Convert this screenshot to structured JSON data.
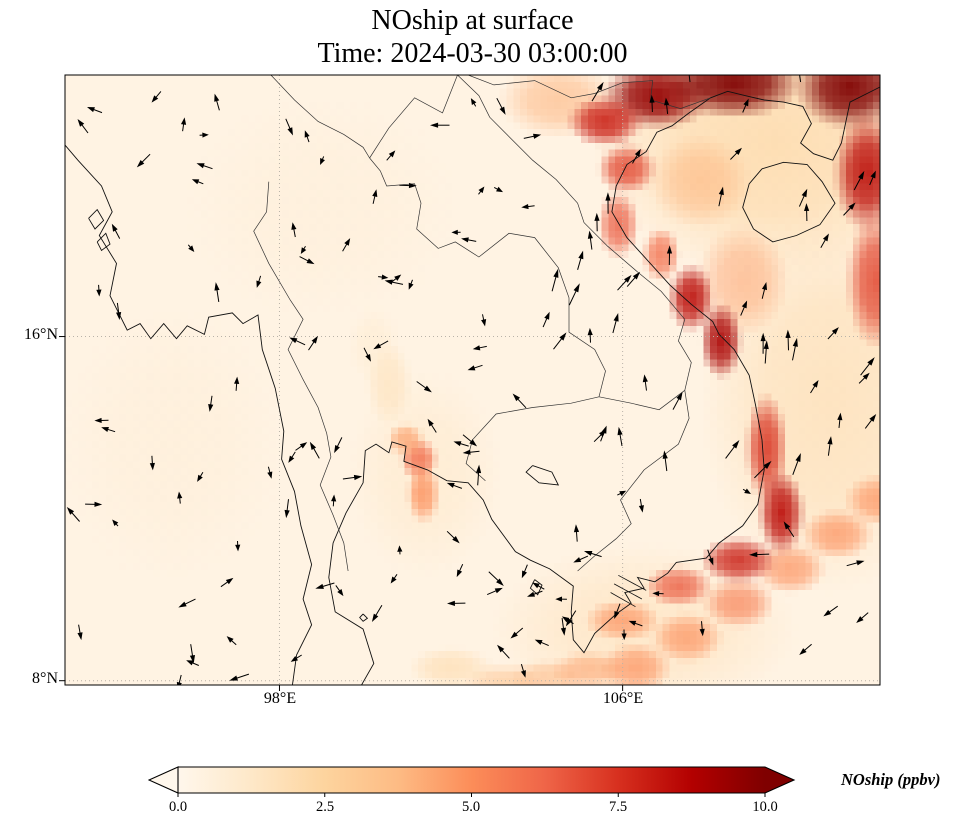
{
  "title": {
    "line1": "NOship at surface",
    "line2": "Time: 2024-03-30 03:00:00"
  },
  "axes": {
    "extent": {
      "lon_min": 93.0,
      "lon_max": 112.0,
      "lat_min": 7.9,
      "lat_max": 22.08
    },
    "x_ticks": [
      {
        "label": "98°E",
        "lon": 98
      },
      {
        "label": "106°E",
        "lon": 106
      }
    ],
    "y_ticks": [
      {
        "label": "16°N",
        "lat": 16
      },
      {
        "label": "8°N",
        "lat": 8
      }
    ],
    "grid": {
      "x_lons": [
        98,
        106
      ],
      "y_lats": [
        16,
        8
      ],
      "style": "dotted"
    }
  },
  "colorbar": {
    "label": "NOship (ppbv)",
    "ticks": [
      "0.0",
      "2.5",
      "5.0",
      "7.5",
      "10.0"
    ],
    "tick_values": [
      0,
      2.5,
      5.0,
      7.5,
      10.0
    ],
    "min": 0,
    "max": 10,
    "extend": "both",
    "stops": [
      {
        "v": 0.0,
        "c": "#fff7ec"
      },
      {
        "v": 1.25,
        "c": "#fee8c8"
      },
      {
        "v": 2.5,
        "c": "#fdd49e"
      },
      {
        "v": 3.75,
        "c": "#fdbb84"
      },
      {
        "v": 5.0,
        "c": "#fc8d59"
      },
      {
        "v": 6.25,
        "c": "#ef6548"
      },
      {
        "v": 7.5,
        "c": "#d7301f"
      },
      {
        "v": 8.75,
        "c": "#b30000"
      },
      {
        "v": 10.0,
        "c": "#7f0000"
      }
    ]
  },
  "chart_data": {
    "type": "heatmap",
    "variable": "NOship",
    "units": "ppbv",
    "level": "surface",
    "time": "2024-03-30 03:00:00",
    "value_range_ppbv": [
      0,
      10
    ],
    "extent": {
      "lon_min": 93.0,
      "lon_max": 112.0,
      "lat_min": 7.9,
      "lat_max": 22.08
    },
    "overlays": [
      "wind_quiver",
      "coastlines",
      "country_borders",
      "dotted_graticule"
    ],
    "background_value_ppbv": 0.3,
    "heat_blobs": [
      [
        109.5,
        20.5,
        4.2,
        3.2,
        2.2,
        0.8
      ],
      [
        110.8,
        14.5,
        3.0,
        4.5,
        2.0,
        0.65
      ],
      [
        106.5,
        9.2,
        3.6,
        2.0,
        1.8,
        0.55
      ],
      [
        101.4,
        12.8,
        1.8,
        2.4,
        1.3,
        0.5
      ],
      [
        95.5,
        13.5,
        2.6,
        3.2,
        0.8,
        0.45
      ],
      [
        99.0,
        19.0,
        3.2,
        2.6,
        0.8,
        0.4
      ],
      [
        104.5,
        21.5,
        1.4,
        0.9,
        4,
        0.6
      ],
      [
        107.8,
        19.6,
        1.2,
        1.1,
        4,
        0.55
      ],
      [
        108.8,
        17.3,
        1.1,
        1.3,
        4.5,
        0.55
      ],
      [
        106.3,
        8.3,
        0.85,
        0.6,
        5,
        0.7
      ],
      [
        107.5,
        9.0,
        0.85,
        0.6,
        5,
        0.7
      ],
      [
        108.7,
        9.8,
        0.85,
        0.6,
        5.5,
        0.7
      ],
      [
        109.9,
        10.6,
        0.85,
        0.6,
        5,
        0.7
      ],
      [
        111.0,
        11.4,
        0.85,
        0.6,
        5,
        0.7
      ],
      [
        112.0,
        12.2,
        0.85,
        0.6,
        5,
        0.7
      ],
      [
        103.2,
        7.95,
        0.9,
        0.45,
        3.5,
        0.55
      ],
      [
        104.2,
        8.05,
        0.9,
        0.45,
        4,
        0.55
      ],
      [
        105.2,
        8.25,
        0.9,
        0.45,
        4.5,
        0.6
      ],
      [
        102.0,
        8.3,
        1.0,
        0.5,
        2.5,
        0.5
      ],
      [
        106.8,
        21.6,
        1.3,
        0.8,
        9.5,
        0.95
      ],
      [
        108.6,
        21.9,
        1.6,
        0.85,
        10,
        0.95
      ],
      [
        111.3,
        21.8,
        1.3,
        1.0,
        10,
        0.95
      ],
      [
        105.6,
        21.0,
        0.9,
        0.6,
        8,
        0.9
      ],
      [
        106.1,
        19.9,
        0.7,
        0.6,
        7,
        0.85
      ],
      [
        111.7,
        19.8,
        0.8,
        1.4,
        8.5,
        0.9
      ],
      [
        111.9,
        17.3,
        0.7,
        1.6,
        7,
        0.85
      ],
      [
        105.9,
        18.6,
        0.5,
        0.8,
        6.5,
        0.8
      ],
      [
        106.9,
        17.9,
        0.45,
        0.65,
        6,
        0.8
      ],
      [
        107.6,
        16.9,
        0.55,
        0.8,
        8.5,
        0.9
      ],
      [
        108.3,
        15.9,
        0.5,
        0.9,
        9,
        0.9
      ],
      [
        109.35,
        13.4,
        0.5,
        1.3,
        7.5,
        0.85
      ],
      [
        109.7,
        11.9,
        0.55,
        1.0,
        8.5,
        0.9
      ],
      [
        108.7,
        10.8,
        0.9,
        0.55,
        8,
        0.85
      ],
      [
        107.3,
        10.2,
        0.8,
        0.5,
        6.5,
        0.8
      ],
      [
        106.0,
        9.4,
        0.9,
        0.5,
        5,
        0.7
      ],
      [
        101.25,
        13.15,
        0.45,
        0.5,
        6,
        0.85
      ],
      [
        101.35,
        12.35,
        0.4,
        0.7,
        5,
        0.8
      ],
      [
        100.95,
        13.6,
        0.45,
        0.4,
        4.5,
        0.75
      ],
      [
        100.55,
        14.9,
        0.55,
        1.0,
        2,
        0.5
      ],
      [
        100.2,
        15.8,
        0.6,
        0.9,
        1.2,
        0.4
      ]
    ],
    "wind": {
      "seed": 42,
      "count": 170,
      "color": "#000000",
      "note": "black quiver arrows; flow northward over NE quadrant (Vietnam coast / Gulf of Tonkin), mixed weak directions elsewhere"
    }
  },
  "map": {
    "coastlines": [
      [
        [
          93.0,
          20.45
        ],
        [
          93.3,
          20.1
        ],
        [
          93.85,
          19.5
        ],
        [
          94.1,
          18.9
        ],
        [
          93.8,
          18.35
        ],
        [
          94.2,
          17.7
        ],
        [
          94.05,
          16.95
        ],
        [
          94.45,
          16.15
        ],
        [
          94.75,
          16.3
        ],
        [
          95.0,
          15.95
        ],
        [
          95.3,
          16.3
        ],
        [
          95.6,
          15.95
        ],
        [
          95.85,
          16.25
        ],
        [
          96.25,
          16.05
        ],
        [
          96.35,
          16.45
        ],
        [
          96.9,
          16.55
        ],
        [
          97.15,
          16.3
        ],
        [
          97.5,
          16.5
        ],
        [
          97.6,
          15.7
        ],
        [
          97.9,
          14.8
        ],
        [
          98.1,
          13.8
        ],
        [
          98.05,
          13.15
        ],
        [
          98.35,
          12.4
        ],
        [
          98.5,
          11.6
        ],
        [
          98.75,
          10.7
        ],
        [
          98.55,
          9.9
        ],
        [
          98.75,
          9.3
        ],
        [
          98.4,
          8.6
        ],
        [
          98.3,
          7.88
        ]
      ],
      [
        [
          99.9,
          7.88
        ],
        [
          100.2,
          8.4
        ],
        [
          99.95,
          9.2
        ],
        [
          99.3,
          9.6
        ],
        [
          99.15,
          10.4
        ],
        [
          99.25,
          11.2
        ],
        [
          99.55,
          11.9
        ],
        [
          99.95,
          12.6
        ],
        [
          100.0,
          13.35
        ],
        [
          100.25,
          13.5
        ],
        [
          100.55,
          13.3
        ],
        [
          100.62,
          13.55
        ],
        [
          100.95,
          13.45
        ],
        [
          100.9,
          13.1
        ],
        [
          101.45,
          12.9
        ],
        [
          101.9,
          12.65
        ],
        [
          102.4,
          12.6
        ],
        [
          102.75,
          12.2
        ],
        [
          102.95,
          11.75
        ],
        [
          103.5,
          11.0
        ],
        [
          103.85,
          10.8
        ],
        [
          104.3,
          10.6
        ],
        [
          104.85,
          10.2
        ],
        [
          104.8,
          9.6
        ],
        [
          104.85,
          8.95
        ],
        [
          105.1,
          8.65
        ],
        [
          105.35,
          9.1
        ],
        [
          105.85,
          9.55
        ],
        [
          106.2,
          9.8
        ],
        [
          106.05,
          10.05
        ],
        [
          106.5,
          10.15
        ],
        [
          106.35,
          10.4
        ],
        [
          106.75,
          10.3
        ],
        [
          107.05,
          10.5
        ],
        [
          107.25,
          10.75
        ],
        [
          107.95,
          10.85
        ],
        [
          108.25,
          11.2
        ],
        [
          108.8,
          11.6
        ],
        [
          109.15,
          12.1
        ],
        [
          109.3,
          12.9
        ],
        [
          109.25,
          13.6
        ],
        [
          109.1,
          14.4
        ],
        [
          108.95,
          15.1
        ],
        [
          108.6,
          15.7
        ],
        [
          108.25,
          16.05
        ],
        [
          108.1,
          16.35
        ],
        [
          107.6,
          16.75
        ],
        [
          107.1,
          17.2
        ],
        [
          106.6,
          17.75
        ],
        [
          106.1,
          18.3
        ],
        [
          105.75,
          18.9
        ],
        [
          105.85,
          19.5
        ],
        [
          106.1,
          20.0
        ],
        [
          106.55,
          20.3
        ],
        [
          106.8,
          20.75
        ],
        [
          107.15,
          20.9
        ],
        [
          107.55,
          21.2
        ],
        [
          108.05,
          21.55
        ],
        [
          108.45,
          21.7
        ],
        [
          108.85,
          21.6
        ],
        [
          109.3,
          21.5
        ],
        [
          109.75,
          21.45
        ],
        [
          110.2,
          21.35
        ],
        [
          110.4,
          20.95
        ],
        [
          110.15,
          20.5
        ],
        [
          110.45,
          20.25
        ],
        [
          110.9,
          20.1
        ],
        [
          111.1,
          20.5
        ],
        [
          111.3,
          21.45
        ],
        [
          111.7,
          21.65
        ],
        [
          112.0,
          21.8
        ]
      ],
      [
        [
          109.25,
          19.9
        ],
        [
          109.75,
          20.05
        ],
        [
          110.3,
          20.0
        ],
        [
          110.65,
          19.6
        ],
        [
          110.95,
          19.1
        ],
        [
          110.6,
          18.6
        ],
        [
          110.05,
          18.35
        ],
        [
          109.5,
          18.2
        ],
        [
          109.05,
          18.5
        ],
        [
          108.8,
          19.0
        ],
        [
          108.95,
          19.55
        ],
        [
          109.25,
          19.9
        ]
      ],
      [
        [
          93.55,
          18.75
        ],
        [
          93.75,
          18.95
        ],
        [
          93.9,
          18.7
        ],
        [
          93.7,
          18.5
        ],
        [
          93.55,
          18.75
        ]
      ],
      [
        [
          93.75,
          18.2
        ],
        [
          93.95,
          18.4
        ],
        [
          94.05,
          18.15
        ],
        [
          93.85,
          18.0
        ],
        [
          93.75,
          18.2
        ]
      ],
      [
        [
          103.95,
          10.35
        ],
        [
          104.12,
          10.22
        ],
        [
          104.02,
          10.0
        ],
        [
          103.85,
          10.15
        ],
        [
          103.95,
          10.35
        ]
      ],
      [
        [
          99.95,
          9.55
        ],
        [
          100.05,
          9.45
        ],
        [
          99.95,
          9.38
        ],
        [
          99.87,
          9.47
        ],
        [
          99.95,
          9.55
        ]
      ],
      [
        [
          103.9,
          13.0
        ],
        [
          104.35,
          12.85
        ],
        [
          104.5,
          12.55
        ],
        [
          104.05,
          12.6
        ],
        [
          103.75,
          12.85
        ],
        [
          103.9,
          13.0
        ]
      ]
    ],
    "delta_channels": [
      [
        [
          105.9,
          10.45
        ],
        [
          106.55,
          10.1
        ]
      ],
      [
        [
          105.8,
          10.25
        ],
        [
          106.45,
          9.9
        ]
      ],
      [
        [
          105.72,
          10.05
        ],
        [
          106.3,
          9.72
        ]
      ]
    ],
    "borders": [
      [
        [
          97.75,
          19.6
        ],
        [
          97.7,
          18.9
        ],
        [
          97.4,
          18.45
        ],
        [
          97.75,
          17.7
        ],
        [
          98.25,
          16.85
        ],
        [
          98.55,
          16.4
        ],
        [
          98.2,
          15.7
        ],
        [
          98.55,
          15.0
        ],
        [
          98.9,
          14.35
        ],
        [
          99.1,
          13.75
        ],
        [
          99.2,
          13.2
        ],
        [
          98.95,
          12.55
        ],
        [
          99.25,
          11.85
        ],
        [
          99.5,
          11.2
        ],
        [
          99.6,
          10.55
        ]
      ],
      [
        [
          100.1,
          20.15
        ],
        [
          100.35,
          19.85
        ],
        [
          100.5,
          19.5
        ],
        [
          101.15,
          19.55
        ],
        [
          101.3,
          19.1
        ],
        [
          101.2,
          18.5
        ],
        [
          101.7,
          18.05
        ],
        [
          102.1,
          18.2
        ],
        [
          102.65,
          17.85
        ],
        [
          103.35,
          18.4
        ],
        [
          103.95,
          18.3
        ],
        [
          104.5,
          17.6
        ],
        [
          104.75,
          16.9
        ],
        [
          104.75,
          16.1
        ],
        [
          105.35,
          15.7
        ],
        [
          105.6,
          15.2
        ],
        [
          105.45,
          14.6
        ]
      ],
      [
        [
          105.45,
          14.6
        ],
        [
          104.8,
          14.45
        ],
        [
          103.9,
          14.35
        ],
        [
          103.05,
          14.2
        ],
        [
          102.5,
          13.6
        ],
        [
          102.35,
          13.05
        ],
        [
          102.8,
          12.65
        ]
      ],
      [
        [
          102.15,
          22.08
        ],
        [
          102.65,
          21.6
        ],
        [
          102.9,
          21.1
        ],
        [
          103.3,
          20.7
        ],
        [
          103.9,
          20.1
        ],
        [
          104.45,
          19.65
        ],
        [
          104.95,
          19.1
        ],
        [
          105.1,
          18.65
        ],
        [
          105.65,
          18.1
        ],
        [
          106.35,
          17.5
        ],
        [
          106.9,
          17.05
        ],
        [
          107.45,
          16.4
        ],
        [
          107.3,
          15.9
        ],
        [
          107.6,
          15.4
        ],
        [
          107.45,
          14.75
        ]
      ],
      [
        [
          107.45,
          14.75
        ],
        [
          107.55,
          14.1
        ],
        [
          107.3,
          13.5
        ],
        [
          106.5,
          12.9
        ],
        [
          105.95,
          12.2
        ],
        [
          106.2,
          11.65
        ],
        [
          105.85,
          11.3
        ],
        [
          105.35,
          10.9
        ],
        [
          104.95,
          10.55
        ]
      ],
      [
        [
          105.45,
          14.6
        ],
        [
          106.2,
          14.45
        ],
        [
          106.85,
          14.3
        ],
        [
          107.45,
          14.75
        ]
      ],
      [
        [
          102.4,
          22.08
        ],
        [
          103.0,
          21.85
        ],
        [
          103.95,
          21.95
        ],
        [
          104.8,
          21.55
        ],
        [
          105.35,
          21.65
        ],
        [
          106.0,
          21.9
        ],
        [
          106.7,
          21.95
        ],
        [
          106.65,
          21.5
        ],
        [
          107.35,
          21.3
        ],
        [
          108.05,
          21.55
        ]
      ],
      [
        [
          97.8,
          22.08
        ],
        [
          98.35,
          21.5
        ],
        [
          98.9,
          21.0
        ],
        [
          99.5,
          20.7
        ],
        [
          99.95,
          20.4
        ],
        [
          100.1,
          20.15
        ]
      ],
      [
        [
          100.1,
          20.15
        ],
        [
          100.55,
          20.85
        ],
        [
          101.15,
          21.55
        ],
        [
          101.8,
          21.2
        ],
        [
          102.15,
          22.08
        ]
      ]
    ]
  }
}
